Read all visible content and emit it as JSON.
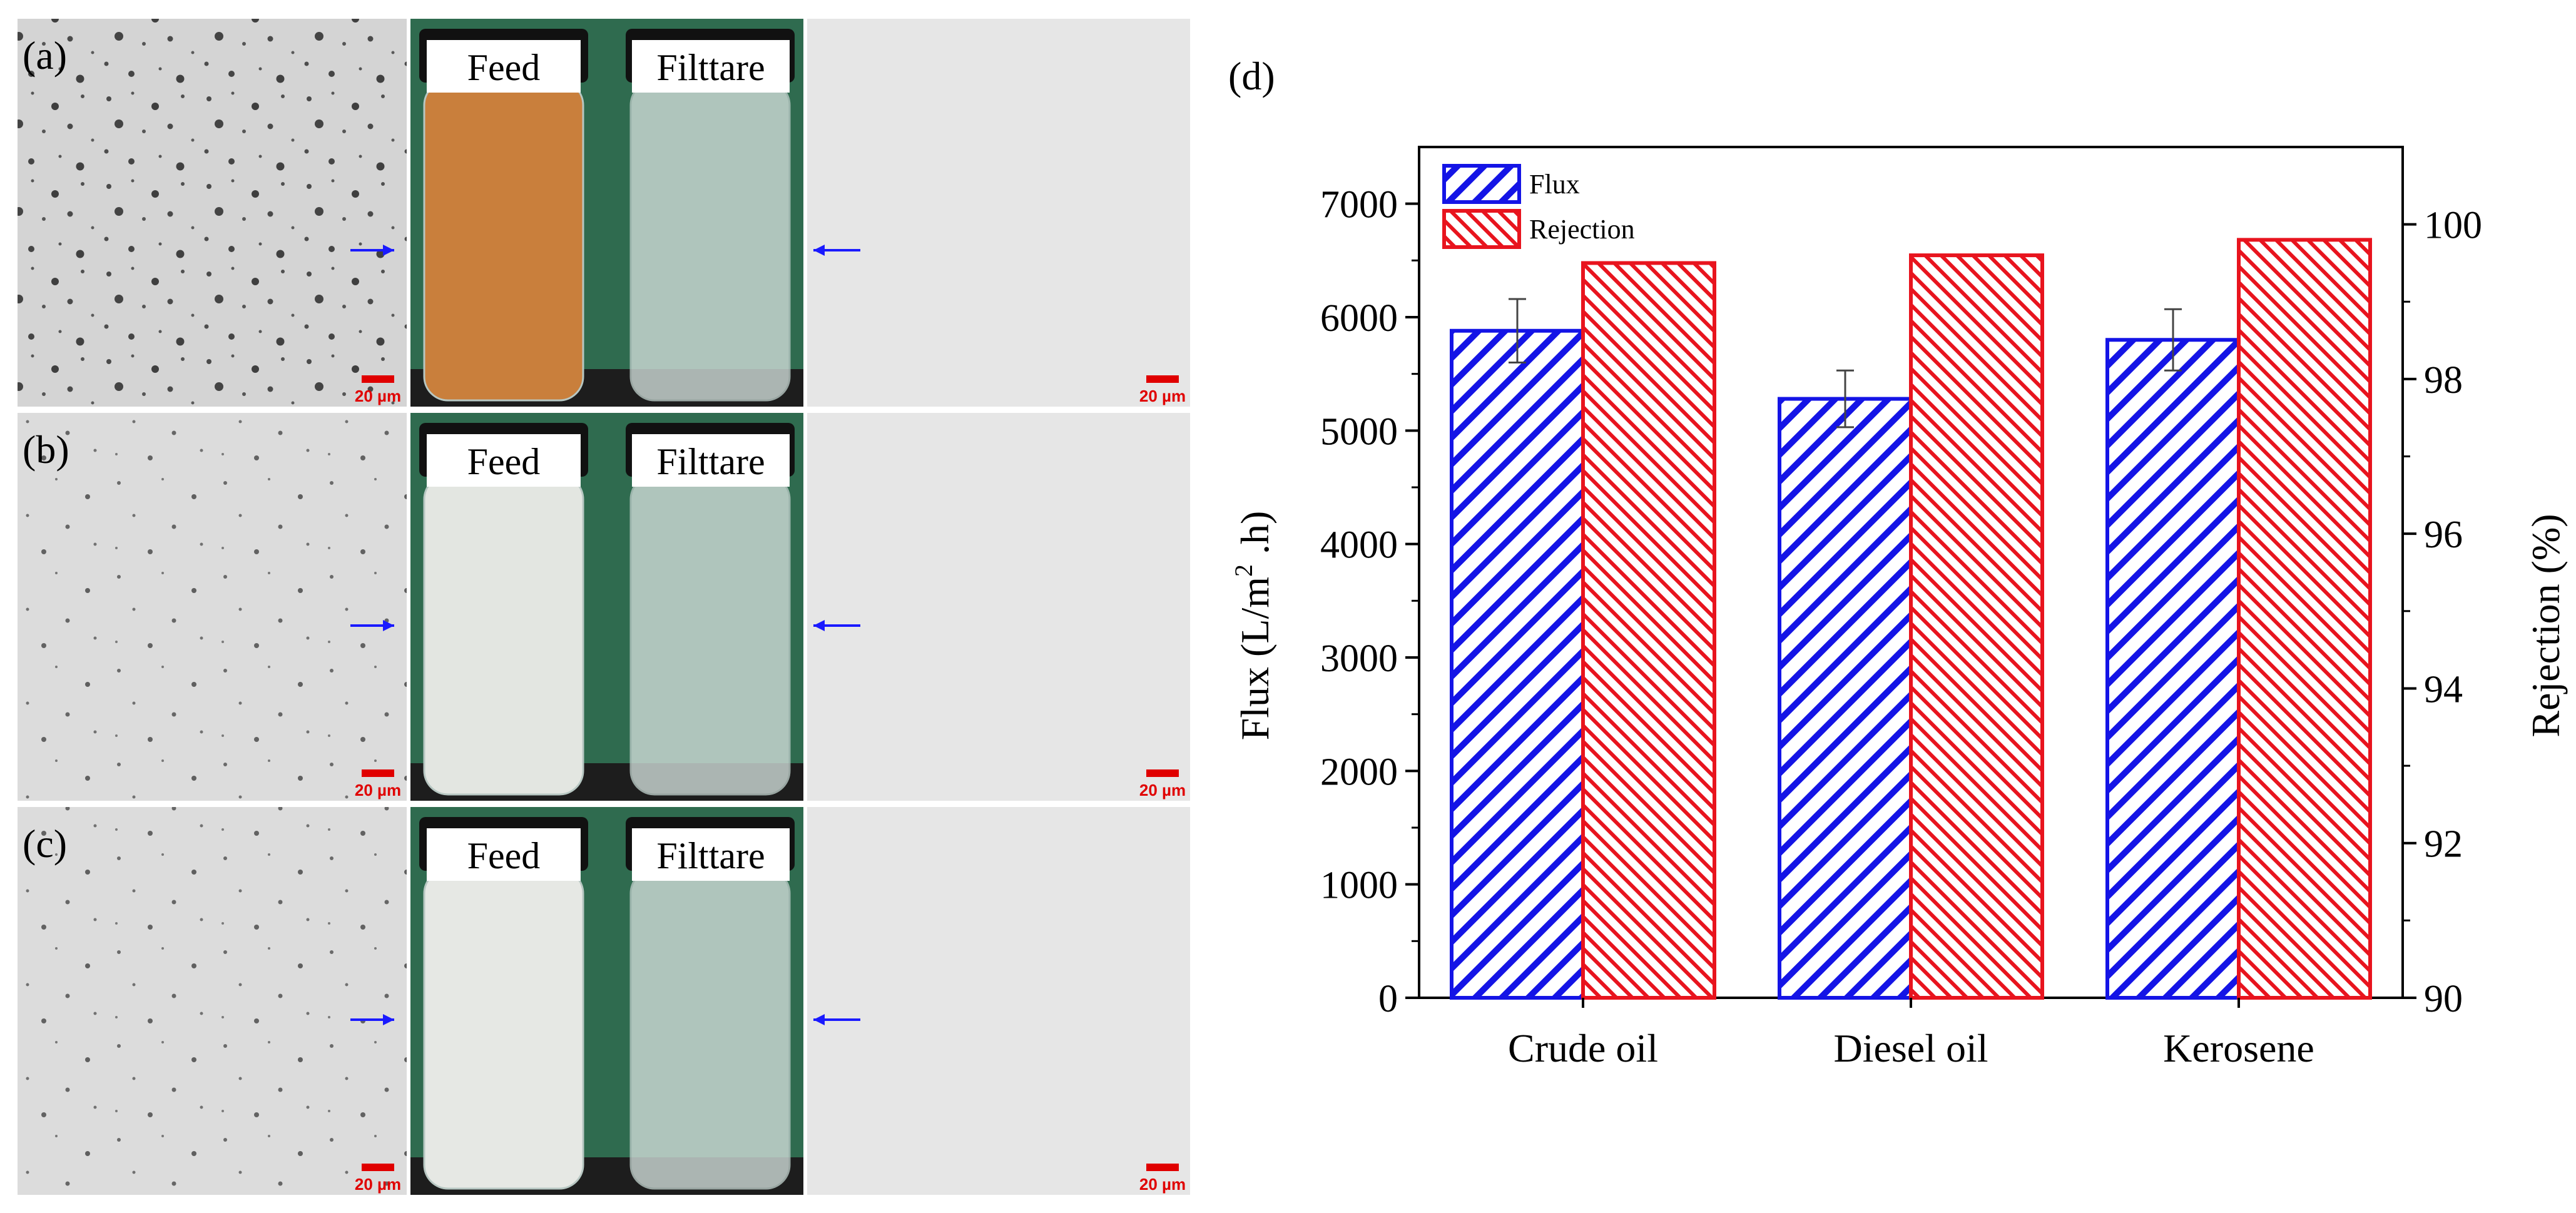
{
  "panels": {
    "labels": [
      "(a)",
      "(b)",
      "(c)"
    ],
    "feed_label": "Feed",
    "filtrate_label": "Filttare",
    "scale_bar_label": "20 µm",
    "feed_liquid_colors": [
      "#c97f3c",
      "#e3e6e1",
      "#e6e8e4"
    ],
    "arrow_color": "#1a1aff",
    "scale_bar_color": "#e00000"
  },
  "chart_data": {
    "panel_label": "(d)",
    "type": "bar",
    "categories": [
      "Crude oil",
      "Diesel oil",
      "Kerosene"
    ],
    "series": [
      {
        "name": "Flux",
        "axis": "left",
        "color": "#1414e6",
        "values": [
          5880,
          5280,
          5800
        ],
        "errors": [
          280,
          250,
          270
        ]
      },
      {
        "name": "Rejection",
        "axis": "right",
        "color": "#e8141e",
        "values": [
          99.5,
          99.6,
          99.8
        ]
      }
    ],
    "ylabel": "Flux (L/m² .h)",
    "ylim": [
      0,
      7500
    ],
    "yticks": [
      0,
      1000,
      2000,
      3000,
      4000,
      5000,
      6000,
      7000
    ],
    "y2label": "Rejection (%)",
    "y2lim": [
      90,
      101
    ],
    "y2ticks": [
      90,
      92,
      94,
      96,
      98,
      100
    ],
    "legend_position": "top-left"
  }
}
